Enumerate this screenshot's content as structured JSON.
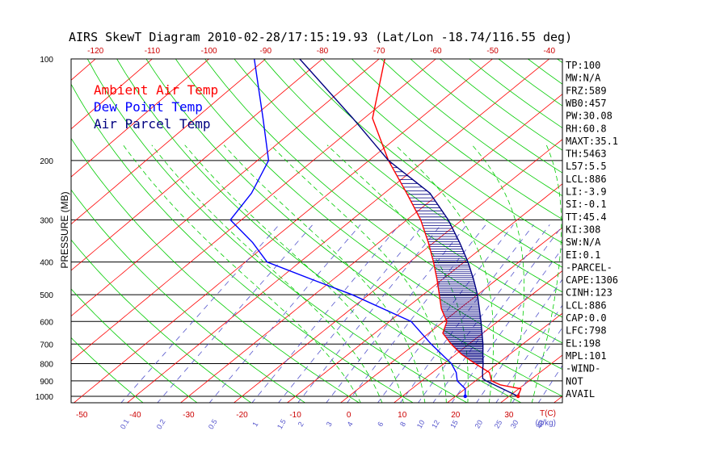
{
  "chart_data": {
    "type": "line",
    "title": "AIRS SkewT Diagram 2010-02-28/17:15:19.93 (Lat/Lon -18.74/116.55 deg)",
    "ylabel": "PRESSURE (MB)",
    "xlabel": "T(C)",
    "mixing_ratio_unit": "(g/kg)",
    "y_scale": "log",
    "ylim": [
      1000,
      100
    ],
    "xlim_bottom": [
      -52,
      40
    ],
    "y_ticks": [
      100,
      200,
      300,
      400,
      500,
      600,
      700,
      800,
      900,
      1000
    ],
    "x_ticks_bottom": [
      -50,
      -40,
      -30,
      -20,
      -10,
      0,
      10,
      20,
      30
    ],
    "x_ticks_top": [
      -120,
      -110,
      -100,
      -90,
      -80,
      -70,
      -60,
      -50,
      -40
    ],
    "mixing_ratio_labels": [
      "0.1",
      "0.2",
      "0.5",
      "1",
      "1.5",
      "2",
      "3",
      "4",
      "6",
      "8",
      "10",
      "12",
      "15",
      "20",
      "25",
      "30",
      "40"
    ],
    "mixing_ratio_values": [
      0.1,
      0.2,
      0.5,
      1,
      1.5,
      2,
      3,
      4,
      6,
      8,
      10,
      12,
      15,
      20,
      25,
      30,
      40
    ],
    "legend": [
      {
        "name": "Ambient Air Temp",
        "color": "#ff0000"
      },
      {
        "name": "Dew Point Temp",
        "color": "#0000ff"
      },
      {
        "name": "Air Parcel Temp",
        "color": "#000080"
      }
    ],
    "colors": {
      "isotherm": "#ff0000",
      "dry_adiabat": "#00cc00",
      "moist_adiabat": "#00cc00",
      "mixing_ratio": "#5555cc",
      "cape_hatch": "#000080",
      "axes": "#000000"
    },
    "series": [
      {
        "name": "Ambient Air Temp",
        "color": "#ff0000",
        "points": [
          {
            "p": 1000,
            "t": 31.7
          },
          {
            "p": 950,
            "t": 30.4
          },
          {
            "p": 925,
            "t": 25.6
          },
          {
            "p": 900,
            "t": 23.0
          },
          {
            "p": 850,
            "t": 20.6
          },
          {
            "p": 800,
            "t": 15.8
          },
          {
            "p": 750,
            "t": 11.0
          },
          {
            "p": 700,
            "t": 6.7
          },
          {
            "p": 650,
            "t": 2.6
          },
          {
            "p": 600,
            "t": 0.6
          },
          {
            "p": 550,
            "t": -3.4
          },
          {
            "p": 500,
            "t": -7.0
          },
          {
            "p": 450,
            "t": -11.0
          },
          {
            "p": 400,
            "t": -15.6
          },
          {
            "p": 350,
            "t": -21.0
          },
          {
            "p": 300,
            "t": -27.5
          },
          {
            "p": 250,
            "t": -36.0
          },
          {
            "p": 200,
            "t": -46.5
          },
          {
            "p": 150,
            "t": -58.5
          },
          {
            "p": 100,
            "t": -69.0
          }
        ]
      },
      {
        "name": "Dew Point Temp",
        "color": "#0000ff",
        "points": [
          {
            "p": 1000,
            "t": 21.8
          },
          {
            "p": 950,
            "t": 20.0
          },
          {
            "p": 900,
            "t": 16.6
          },
          {
            "p": 850,
            "t": 14.4
          },
          {
            "p": 800,
            "t": 11.4
          },
          {
            "p": 700,
            "t": 3.0
          },
          {
            "p": 600,
            "t": -6.0
          },
          {
            "p": 500,
            "t": -23.0
          },
          {
            "p": 450,
            "t": -34.0
          },
          {
            "p": 400,
            "t": -46.0
          },
          {
            "p": 350,
            "t": -53.0
          },
          {
            "p": 300,
            "t": -62.0
          },
          {
            "p": 250,
            "t": -64.0
          },
          {
            "p": 200,
            "t": -68.0
          },
          {
            "p": 150,
            "t": -78.0
          },
          {
            "p": 100,
            "t": -92.0
          }
        ]
      },
      {
        "name": "Air Parcel Temp",
        "color": "#000080",
        "points": [
          {
            "p": 1000,
            "t": 31.7
          },
          {
            "p": 900,
            "t": 22.0
          },
          {
            "p": 886,
            "t": 20.8
          },
          {
            "p": 850,
            "t": 19.3
          },
          {
            "p": 800,
            "t": 17.3
          },
          {
            "p": 750,
            "t": 15.0
          },
          {
            "p": 700,
            "t": 12.6
          },
          {
            "p": 600,
            "t": 6.9
          },
          {
            "p": 550,
            "t": 3.6
          },
          {
            "p": 500,
            "t": 0.0
          },
          {
            "p": 450,
            "t": -4.3
          },
          {
            "p": 400,
            "t": -9.3
          },
          {
            "p": 350,
            "t": -15.3
          },
          {
            "p": 300,
            "t": -22.5
          },
          {
            "p": 250,
            "t": -31.8
          },
          {
            "p": 200,
            "t": -46.5
          },
          {
            "p": 150,
            "t": -62.0
          },
          {
            "p": 100,
            "t": -84.0
          }
        ]
      }
    ]
  },
  "indices": [
    "TP:100",
    "MW:N/A",
    "FRZ:589",
    "WB0:457",
    "PW:30.08",
    "RH:60.8",
    "MAXT:35.1",
    "TH:5463",
    "L57:5.5",
    "LCL:886",
    "LI:-3.9",
    "SI:-0.1",
    "TT:45.4",
    "KI:308",
    "SW:N/A",
    "EI:0.1",
    "-PARCEL-",
    "CAPE:1306",
    "CINH:123",
    "LCL:886",
    "CAP:0.0",
    "LFC:798",
    "EL:198",
    "MPL:101",
    "-WIND-",
    "NOT",
    "AVAIL"
  ]
}
